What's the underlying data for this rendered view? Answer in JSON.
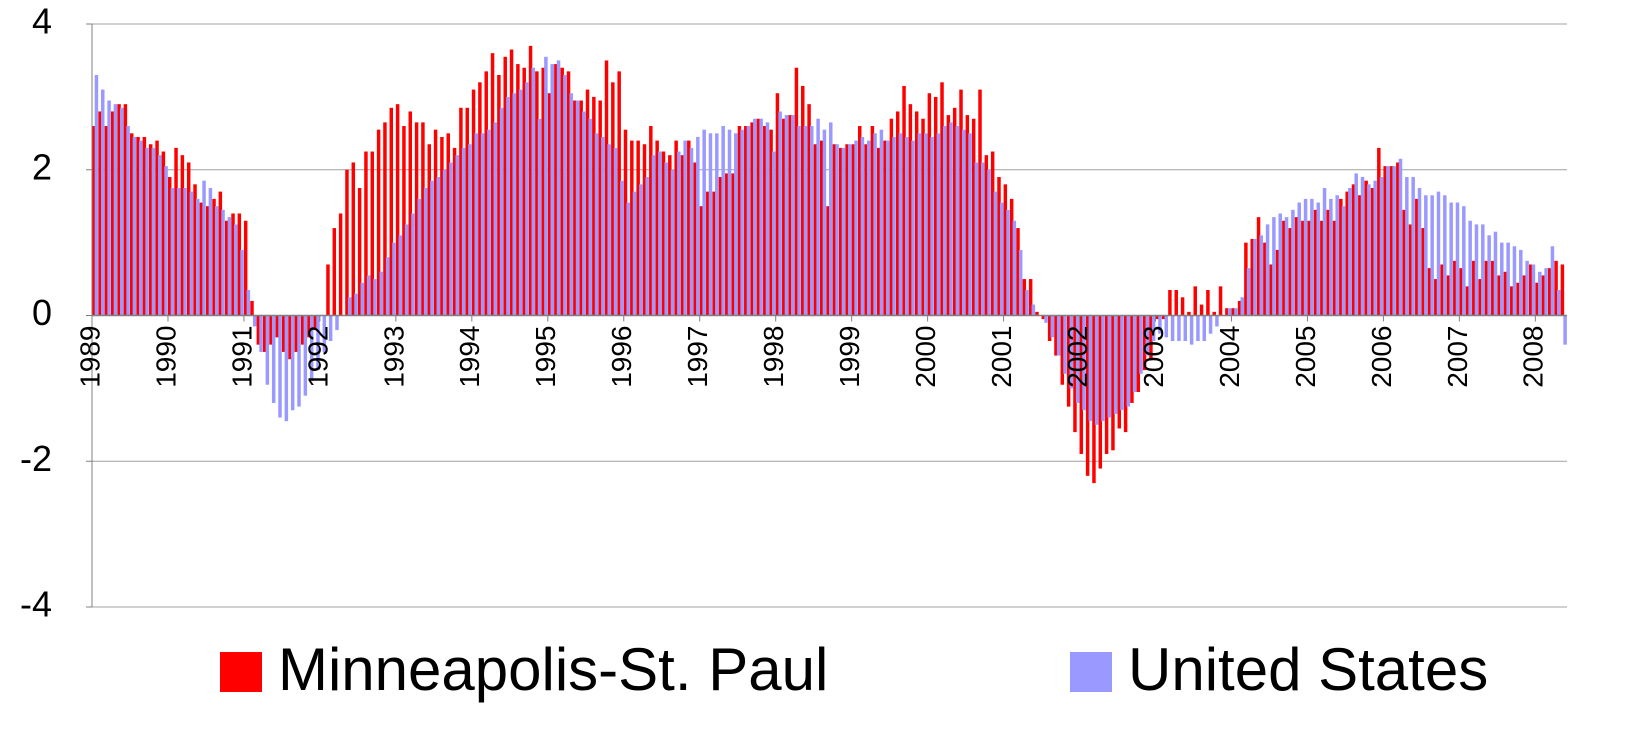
{
  "chart_data": {
    "type": "bar",
    "legend": "bottom",
    "grid": true,
    "ylim": [
      -4,
      4
    ],
    "yticks": [
      -4,
      -2,
      0,
      2,
      4
    ],
    "categories": [
      "1989",
      null,
      null,
      null,
      null,
      null,
      null,
      null,
      null,
      null,
      null,
      null,
      "1990",
      null,
      null,
      null,
      null,
      null,
      null,
      null,
      null,
      null,
      null,
      null,
      "1991",
      null,
      null,
      null,
      null,
      null,
      null,
      null,
      null,
      null,
      null,
      null,
      "1992",
      null,
      null,
      null,
      null,
      null,
      null,
      null,
      null,
      null,
      null,
      null,
      "1993",
      null,
      null,
      null,
      null,
      null,
      null,
      null,
      null,
      null,
      null,
      null,
      "1994",
      null,
      null,
      null,
      null,
      null,
      null,
      null,
      null,
      null,
      null,
      null,
      "1995",
      null,
      null,
      null,
      null,
      null,
      null,
      null,
      null,
      null,
      null,
      null,
      "1996",
      null,
      null,
      null,
      null,
      null,
      null,
      null,
      null,
      null,
      null,
      null,
      "1997",
      null,
      null,
      null,
      null,
      null,
      null,
      null,
      null,
      null,
      null,
      null,
      "1998",
      null,
      null,
      null,
      null,
      null,
      null,
      null,
      null,
      null,
      null,
      null,
      "1999",
      null,
      null,
      null,
      null,
      null,
      null,
      null,
      null,
      null,
      null,
      null,
      "2000",
      null,
      null,
      null,
      null,
      null,
      null,
      null,
      null,
      null,
      null,
      null,
      "2001",
      null,
      null,
      null,
      null,
      null,
      null,
      null,
      null,
      null,
      null,
      null,
      "2002",
      null,
      null,
      null,
      null,
      null,
      null,
      null,
      null,
      null,
      null,
      null,
      "2003",
      null,
      null,
      null,
      null,
      null,
      null,
      null,
      null,
      null,
      null,
      null,
      "2004",
      null,
      null,
      null,
      null,
      null,
      null,
      null,
      null,
      null,
      null,
      null,
      "2005",
      null,
      null,
      null,
      null,
      null,
      null,
      null,
      null,
      null,
      null,
      null,
      "2006",
      null,
      null,
      null,
      null,
      null,
      null,
      null,
      null,
      null,
      null,
      null,
      "2007",
      null,
      null,
      null,
      null,
      null,
      null,
      null,
      null,
      null,
      null,
      null,
      "2008",
      null,
      null,
      null,
      null
    ],
    "series": [
      {
        "name": "Minneapolis-St. Paul",
        "color": "#ff0000",
        "values": [
          2.6,
          2.8,
          2.6,
          2.8,
          2.9,
          2.9,
          2.5,
          2.45,
          2.45,
          2.35,
          2.4,
          2.25,
          1.9,
          2.3,
          2.2,
          2.1,
          1.8,
          1.55,
          1.5,
          1.6,
          1.7,
          1.3,
          1.4,
          1.4,
          1.3,
          0.2,
          -0.4,
          -0.5,
          -0.4,
          -0.3,
          -0.5,
          -0.6,
          -0.5,
          -0.4,
          -0.3,
          -0.2,
          0.0,
          0.7,
          1.2,
          1.4,
          2.0,
          2.1,
          1.75,
          2.25,
          2.25,
          2.55,
          2.65,
          2.85,
          2.9,
          2.6,
          2.8,
          2.65,
          2.65,
          2.35,
          2.55,
          2.45,
          2.5,
          2.3,
          2.85,
          2.85,
          3.1,
          3.2,
          3.35,
          3.6,
          3.3,
          3.55,
          3.65,
          3.45,
          3.4,
          3.7,
          3.35,
          3.4,
          3.05,
          3.45,
          3.4,
          3.35,
          2.95,
          2.95,
          3.1,
          3.0,
          2.95,
          3.5,
          3.2,
          3.35,
          2.55,
          2.4,
          2.4,
          2.35,
          2.6,
          2.4,
          2.25,
          2.2,
          2.4,
          2.2,
          2.4,
          2.1,
          1.5,
          1.7,
          1.7,
          1.9,
          1.95,
          1.95,
          2.6,
          2.6,
          2.65,
          2.7,
          2.6,
          2.55,
          3.05,
          2.7,
          2.75,
          3.4,
          3.15,
          2.9,
          2.35,
          2.4,
          1.5,
          2.35,
          2.3,
          2.35,
          2.35,
          2.6,
          2.35,
          2.6,
          2.3,
          2.4,
          2.7,
          2.8,
          3.15,
          2.9,
          2.8,
          2.7,
          3.05,
          3.0,
          3.2,
          2.75,
          2.85,
          3.1,
          2.75,
          2.7,
          3.1,
          2.2,
          2.25,
          1.9,
          1.8,
          1.6,
          1.2,
          0.5,
          0.5,
          0.05,
          -0.05,
          -0.35,
          -0.55,
          -0.95,
          -1.25,
          -1.6,
          -1.9,
          -2.2,
          -2.3,
          -2.1,
          -1.9,
          -1.85,
          -1.55,
          -1.6,
          -1.2,
          -1.05,
          -0.75,
          -0.6,
          -0.05,
          -0.05,
          0.35,
          0.35,
          0.25,
          0.05,
          0.4,
          0.15,
          0.35,
          0.05,
          0.4,
          0.1,
          0.1,
          0.2,
          1.0,
          1.05,
          1.35,
          1.0,
          0.7,
          0.9,
          1.3,
          1.2,
          1.35,
          1.3,
          1.3,
          1.45,
          1.3,
          1.45,
          1.3,
          1.6,
          1.7,
          1.8,
          1.65,
          1.85,
          1.75,
          2.3,
          2.05,
          2.05,
          2.1,
          1.45,
          1.25,
          1.6,
          1.2,
          0.65,
          0.5,
          0.7,
          0.55,
          0.75,
          0.65,
          0.4,
          0.75,
          0.5,
          0.75,
          0.75,
          0.55,
          0.6,
          0.4,
          0.45,
          0.55,
          0.7,
          0.45,
          0.55,
          0.65,
          0.75,
          0.7
        ]
      },
      {
        "name": "United States",
        "color": "#9999ff",
        "values": [
          3.3,
          3.1,
          2.95,
          2.9,
          2.85,
          2.6,
          2.45,
          2.4,
          2.3,
          2.3,
          2.2,
          2.05,
          1.75,
          1.75,
          1.75,
          1.7,
          1.6,
          1.85,
          1.75,
          1.5,
          1.45,
          1.35,
          1.25,
          0.9,
          0.35,
          -0.15,
          -0.5,
          -0.95,
          -1.2,
          -1.4,
          -1.45,
          -1.3,
          -1.25,
          -1.1,
          -0.9,
          -0.75,
          -0.5,
          -0.35,
          -0.2,
          0.0,
          0.25,
          0.3,
          0.45,
          0.55,
          0.5,
          0.6,
          0.8,
          1.0,
          1.1,
          1.25,
          1.4,
          1.6,
          1.75,
          1.85,
          1.9,
          2.0,
          2.1,
          2.2,
          2.3,
          2.35,
          2.5,
          2.5,
          2.55,
          2.65,
          2.85,
          3.0,
          3.05,
          3.1,
          3.2,
          3.4,
          2.7,
          3.55,
          3.45,
          3.5,
          3.3,
          3.05,
          2.95,
          2.8,
          2.7,
          2.5,
          2.45,
          2.35,
          2.3,
          1.85,
          1.55,
          1.7,
          1.8,
          1.9,
          2.2,
          2.25,
          2.1,
          2.0,
          2.25,
          2.4,
          2.3,
          2.45,
          2.55,
          2.5,
          2.5,
          2.6,
          2.55,
          2.5,
          2.55,
          2.6,
          2.7,
          2.7,
          2.65,
          2.25,
          2.8,
          2.75,
          2.75,
          2.6,
          2.6,
          2.6,
          2.7,
          2.55,
          2.65,
          2.35,
          2.3,
          2.35,
          2.4,
          2.45,
          2.4,
          2.5,
          2.55,
          2.4,
          2.45,
          2.5,
          2.45,
          2.4,
          2.5,
          2.5,
          2.45,
          2.5,
          2.6,
          2.65,
          2.6,
          2.55,
          2.5,
          2.1,
          2.1,
          2.0,
          1.7,
          1.55,
          1.45,
          1.3,
          0.9,
          0.35,
          0.15,
          0.0,
          -0.1,
          -0.3,
          -0.55,
          -0.8,
          -1.0,
          -1.2,
          -1.3,
          -1.45,
          -1.5,
          -1.45,
          -1.4,
          -1.35,
          -1.3,
          -1.25,
          -1.05,
          -0.8,
          -0.55,
          -0.35,
          -0.25,
          -0.3,
          -0.35,
          -0.35,
          -0.35,
          -0.4,
          -0.35,
          -0.35,
          -0.25,
          -0.15,
          0.0,
          0.1,
          0.1,
          0.25,
          0.65,
          1.05,
          1.1,
          1.25,
          1.35,
          1.4,
          1.35,
          1.45,
          1.55,
          1.6,
          1.6,
          1.55,
          1.75,
          1.6,
          1.65,
          1.5,
          1.75,
          1.95,
          1.9,
          1.8,
          1.85,
          1.9,
          2.05,
          2.05,
          2.15,
          1.9,
          1.9,
          1.75,
          1.65,
          1.65,
          1.7,
          1.65,
          1.55,
          1.55,
          1.5,
          1.3,
          1.25,
          1.25,
          1.1,
          1.15,
          1.0,
          1.0,
          0.95,
          0.9,
          0.75,
          0.7,
          0.6,
          0.65,
          0.95,
          0.35,
          -0.4
        ]
      }
    ]
  }
}
